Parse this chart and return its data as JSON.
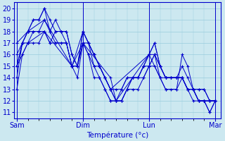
{
  "xlabel": "Température (°c)",
  "background_color": "#cce8f0",
  "grid_color": "#99ccdd",
  "line_color": "#0000cc",
  "marker": "+",
  "ylim": [
    11,
    20
  ],
  "yticks": [
    11,
    12,
    13,
    14,
    15,
    16,
    17,
    18,
    19,
    20
  ],
  "xtick_labels": [
    "Sam",
    "Dim",
    "Lun",
    "Mar"
  ],
  "xtick_positions": [
    0,
    48,
    96,
    144
  ],
  "xlim": [
    -2,
    148
  ],
  "series": [
    [
      0,
      13,
      4,
      16,
      8,
      17,
      12,
      18,
      16,
      18,
      20,
      18,
      24,
      17,
      28,
      18,
      32,
      18,
      36,
      17,
      40,
      15,
      44,
      15,
      48,
      17,
      52,
      16,
      56,
      14,
      60,
      14,
      64,
      13,
      68,
      12,
      72,
      12,
      76,
      12,
      80,
      13,
      84,
      13,
      88,
      13,
      92,
      14,
      96,
      15,
      100,
      16,
      104,
      14,
      108,
      13,
      112,
      13,
      116,
      13,
      120,
      14,
      124,
      13,
      128,
      12,
      132,
      12,
      136,
      12,
      140,
      11,
      144,
      12
    ],
    [
      0,
      14,
      4,
      17,
      8,
      18,
      12,
      19,
      16,
      19,
      20,
      20,
      24,
      18,
      28,
      19,
      32,
      18,
      36,
      18,
      40,
      16,
      44,
      15,
      48,
      18,
      52,
      17,
      56,
      15,
      60,
      15,
      64,
      14,
      68,
      13,
      72,
      12,
      76,
      13,
      80,
      14,
      84,
      14,
      88,
      14,
      92,
      15,
      96,
      16,
      100,
      17,
      104,
      15,
      108,
      14,
      112,
      14,
      116,
      14,
      120,
      14,
      124,
      13,
      128,
      13,
      132,
      12,
      136,
      12,
      140,
      12,
      144,
      12
    ],
    [
      0,
      15,
      4,
      17,
      8,
      18,
      12,
      19,
      16,
      19,
      20,
      20,
      24,
      19,
      28,
      18,
      32,
      18,
      36,
      18,
      40,
      16,
      44,
      15,
      48,
      18,
      52,
      17,
      56,
      16,
      60,
      15,
      64,
      14,
      68,
      13,
      72,
      12,
      76,
      12,
      80,
      13,
      84,
      14,
      88,
      14,
      92,
      15,
      96,
      15,
      100,
      16,
      104,
      15,
      108,
      14,
      112,
      14,
      116,
      14,
      120,
      15,
      124,
      14,
      128,
      13,
      132,
      13,
      136,
      13,
      140,
      12,
      144,
      12
    ],
    [
      0,
      15,
      4,
      17,
      8,
      18,
      12,
      18,
      16,
      18,
      20,
      19,
      24,
      18,
      28,
      17,
      32,
      17,
      36,
      17,
      40,
      15,
      44,
      14,
      48,
      17,
      52,
      16,
      56,
      15,
      60,
      14,
      64,
      13,
      68,
      12,
      72,
      12,
      76,
      12,
      80,
      13,
      84,
      14,
      88,
      14,
      92,
      15,
      96,
      16,
      100,
      16,
      104,
      15,
      108,
      14,
      112,
      14,
      116,
      14,
      120,
      14,
      124,
      13,
      128,
      13,
      132,
      12,
      136,
      12,
      140,
      12,
      144,
      12
    ],
    [
      0,
      16,
      4,
      17,
      8,
      17,
      12,
      17,
      16,
      17,
      20,
      18,
      24,
      17,
      28,
      17,
      32,
      17,
      36,
      17,
      40,
      15,
      44,
      15,
      48,
      17,
      52,
      17,
      56,
      16,
      60,
      15,
      64,
      14,
      68,
      13,
      72,
      13,
      76,
      13,
      80,
      14,
      84,
      14,
      88,
      14,
      92,
      14,
      96,
      15,
      100,
      15,
      104,
      14,
      108,
      14,
      112,
      14,
      116,
      14,
      120,
      14,
      124,
      13,
      128,
      13,
      132,
      13,
      136,
      13,
      140,
      12,
      144,
      12
    ],
    [
      0,
      15,
      8,
      17,
      20,
      18,
      40,
      15,
      48,
      17,
      68,
      14,
      72,
      12,
      96,
      16,
      104,
      14,
      108,
      13,
      116,
      13,
      120,
      16,
      124,
      15,
      128,
      13,
      132,
      12,
      136,
      12,
      140,
      11,
      144,
      12
    ],
    [
      0,
      17,
      8,
      18,
      20,
      19,
      40,
      15,
      48,
      18,
      56,
      16,
      64,
      14,
      68,
      13,
      96,
      16,
      100,
      17,
      104,
      15,
      108,
      14,
      116,
      14,
      120,
      14,
      124,
      13,
      128,
      13,
      132,
      12,
      136,
      12,
      140,
      12,
      144,
      12
    ]
  ]
}
